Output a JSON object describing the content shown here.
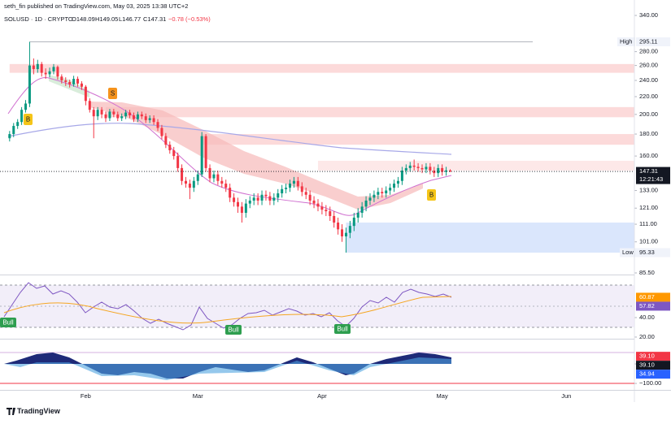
{
  "header": {
    "publisher": "seth_fin published on TradingView.com, May 03, 2025 13:38 UTC+2",
    "symbol": "SOLUSD · 1D · CRYPTO",
    "open": "O148.09",
    "high": "H149.05",
    "low": "L146.77",
    "close": "C147.31",
    "change": "−0.78 (−0.53%)"
  },
  "chart_data": {
    "type": "candlestick",
    "open": [
      176,
      180,
      188,
      192,
      205,
      212,
      260,
      255,
      262,
      250,
      248,
      252,
      258,
      245,
      240,
      238,
      235,
      242,
      236,
      232,
      215,
      205,
      198,
      205,
      200,
      196,
      203,
      200,
      196,
      198,
      202,
      199,
      195,
      200,
      198,
      194,
      196,
      192,
      186,
      178,
      170,
      165,
      160,
      150,
      140,
      138,
      135,
      140,
      145,
      178,
      150,
      142,
      145,
      140,
      138,
      135,
      128,
      125,
      122,
      118,
      124,
      126,
      128,
      126,
      130,
      129,
      126,
      128,
      131,
      134,
      135,
      138,
      140,
      136,
      132,
      130,
      126,
      124,
      122,
      120,
      119,
      116,
      112,
      108,
      104,
      106,
      110,
      115,
      118,
      122,
      126,
      128,
      130,
      132,
      131,
      133,
      135,
      138,
      140,
      148,
      150,
      152,
      151,
      150,
      149,
      151,
      148,
      146,
      150,
      147,
      148.09
    ],
    "high": [
      183,
      191,
      195,
      208,
      216,
      295.11,
      270,
      268,
      265,
      256,
      257,
      262,
      260,
      248,
      244,
      241,
      246,
      245,
      239,
      234,
      218,
      208,
      208,
      208,
      203,
      206,
      206,
      203,
      201,
      205,
      205,
      202,
      203,
      203,
      201,
      199,
      199,
      195,
      189,
      181,
      173,
      168,
      163,
      153,
      143,
      141,
      143,
      148,
      182,
      180,
      153,
      148,
      148,
      143,
      141,
      138,
      131,
      128,
      125,
      127,
      129,
      131,
      131,
      133,
      133,
      132,
      131,
      134,
      137,
      138,
      141,
      143,
      143,
      139,
      135,
      133,
      129,
      127,
      125,
      123,
      122,
      119,
      115,
      111,
      109,
      113,
      118,
      121,
      125,
      129,
      131,
      133,
      135,
      135,
      136,
      138,
      141,
      143,
      151,
      153,
      155,
      157,
      154,
      153,
      154,
      154,
      151,
      153,
      153,
      151,
      149.05
    ],
    "low": [
      173,
      177,
      185,
      189,
      202,
      208,
      248,
      250,
      245,
      242,
      244,
      248,
      241,
      236,
      233,
      231,
      232,
      232,
      228,
      210,
      202,
      176,
      194,
      196,
      192,
      193,
      197,
      193,
      193,
      195,
      196,
      192,
      192,
      195,
      191,
      191,
      189,
      183,
      175,
      167,
      162,
      157,
      147,
      137,
      135,
      127,
      132,
      137,
      143,
      147,
      139,
      139,
      137,
      135,
      132,
      125,
      122,
      118,
      112,
      115,
      121,
      123,
      123,
      123,
      126,
      123,
      123,
      125,
      128,
      131,
      132,
      135,
      133,
      129,
      127,
      123,
      121,
      119,
      117,
      116,
      113,
      109,
      105,
      101,
      95.33,
      103,
      107,
      112,
      115,
      119,
      123,
      125,
      127,
      128,
      128,
      130,
      132,
      135,
      137,
      145,
      147,
      148,
      147,
      146,
      146,
      145,
      143,
      143,
      144,
      144,
      146.77
    ],
    "close": [
      180,
      188,
      192,
      205,
      212,
      260,
      255,
      262,
      250,
      248,
      252,
      258,
      245,
      240,
      238,
      235,
      242,
      236,
      232,
      215,
      205,
      198,
      205,
      200,
      196,
      203,
      200,
      196,
      198,
      202,
      199,
      195,
      200,
      198,
      194,
      196,
      192,
      186,
      178,
      170,
      165,
      160,
      150,
      140,
      138,
      135,
      140,
      145,
      178,
      150,
      142,
      145,
      140,
      138,
      135,
      128,
      125,
      122,
      118,
      124,
      126,
      128,
      126,
      130,
      129,
      126,
      128,
      131,
      134,
      135,
      138,
      140,
      136,
      132,
      130,
      126,
      124,
      122,
      120,
      119,
      116,
      112,
      108,
      104,
      106,
      110,
      115,
      118,
      122,
      126,
      128,
      130,
      132,
      131,
      133,
      135,
      138,
      140,
      148,
      150,
      152,
      151,
      150,
      149,
      151,
      148,
      146,
      150,
      147,
      148.09,
      147.31
    ],
    "up_color": "#089981",
    "down_color": "#f23645",
    "log_scale": true,
    "ylim": [
      85.5,
      340
    ],
    "yticks": [
      {
        "value": 340,
        "label": "340.00"
      },
      {
        "value": 280,
        "label": "280.00"
      },
      {
        "value": 260,
        "label": "260.00"
      },
      {
        "value": 240,
        "label": "240.00"
      },
      {
        "value": 220,
        "label": "220.00"
      },
      {
        "value": 200,
        "label": "200.00"
      },
      {
        "value": 180,
        "label": "180.00"
      },
      {
        "value": 160,
        "label": "160.00"
      },
      {
        "value": 133,
        "label": "133.00"
      },
      {
        "value": 121,
        "label": "121.00"
      },
      {
        "value": 111,
        "label": "111.00"
      },
      {
        "value": 101,
        "label": "101.00"
      },
      {
        "value": 85.5,
        "label": "85.50"
      }
    ],
    "xlim": [
      -2.4,
      156
    ],
    "xticks": [
      {
        "value": 19,
        "label": "Feb"
      },
      {
        "value": 47,
        "label": "Mar"
      },
      {
        "value": 78,
        "label": "Apr"
      },
      {
        "value": 108,
        "label": "May"
      },
      {
        "value": 139,
        "label": "Jun"
      }
    ],
    "high_marker": {
      "label": "High",
      "value": 295.11
    },
    "low_marker": {
      "label": "Low",
      "value": 95.33
    },
    "last_price": {
      "value": 147.31,
      "countdown": "12:21:43"
    },
    "zones": [
      {
        "from": 0,
        "low": 250,
        "high": 262,
        "color": "#fbd3d3"
      },
      {
        "from": 24,
        "low": 197,
        "high": 208,
        "color": "#fbd3d3"
      },
      {
        "from": 48,
        "low": 170,
        "high": 180,
        "color": "#fbd3d3"
      },
      {
        "from": 77,
        "low": 148,
        "high": 156,
        "color": "#fde4e4"
      },
      {
        "from": 84,
        "low": 95.33,
        "high": 112,
        "color": "#d3e2fb"
      }
    ],
    "signals": [
      "B",
      "S",
      "B"
    ]
  },
  "rsi": {
    "ylim": [
      18.3,
      82.5
    ],
    "yticks": [
      {
        "value": 40,
        "label": "40.00"
      },
      {
        "value": 20,
        "label": "20.00"
      }
    ],
    "readings": [
      {
        "value": 60.87,
        "color": "#ff9800"
      },
      {
        "value": 57.82,
        "color": "#7e57c2"
      }
    ],
    "signals": [
      "Bull",
      "Bull",
      "Bull"
    ]
  },
  "oscillator": {
    "ylim": [
      -133,
      125
    ],
    "yticks": [
      {
        "value": 0,
        "label": "0.00"
      },
      {
        "value": -100,
        "label": "−100.00"
      }
    ],
    "readings": [
      {
        "value": 39.1,
        "label": "39.10",
        "color": "#f23645"
      },
      {
        "value": 39.1,
        "label": "39.10",
        "color": "#131722"
      },
      {
        "value": 34.94,
        "color": "#2962ff"
      }
    ]
  },
  "footer": "TradingView"
}
